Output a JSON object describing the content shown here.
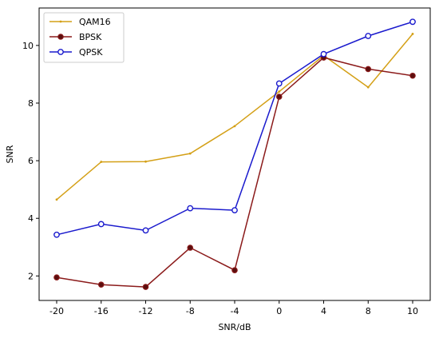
{
  "chart_data": {
    "type": "line",
    "title": "",
    "xlabel": "SNR/dB",
    "ylabel": "SNR",
    "x": [
      "-20",
      "-16",
      "-12",
      "-8",
      "-4",
      "0",
      "4",
      "8",
      "10"
    ],
    "ylim": [
      1.15,
      11.3
    ],
    "yticks": [
      "2",
      "4",
      "6",
      "8",
      "10"
    ],
    "grid": false,
    "legend_position": "top-left",
    "series": [
      {
        "name": "QAM16",
        "color": "#d4a017",
        "marker": "dot",
        "values": [
          4.65,
          5.96,
          5.97,
          6.25,
          7.2,
          8.4,
          9.65,
          8.55,
          10.4
        ]
      },
      {
        "name": "BPSK",
        "color": "#8b1a1a",
        "marker": "filled-circle",
        "values": [
          1.95,
          1.7,
          1.62,
          2.98,
          2.2,
          8.22,
          9.58,
          9.18,
          8.95
        ]
      },
      {
        "name": "QPSK",
        "color": "#1a1acd",
        "marker": "open-circle",
        "values": [
          3.43,
          3.8,
          3.58,
          4.35,
          4.28,
          8.68,
          9.7,
          10.33,
          10.82
        ]
      }
    ]
  }
}
